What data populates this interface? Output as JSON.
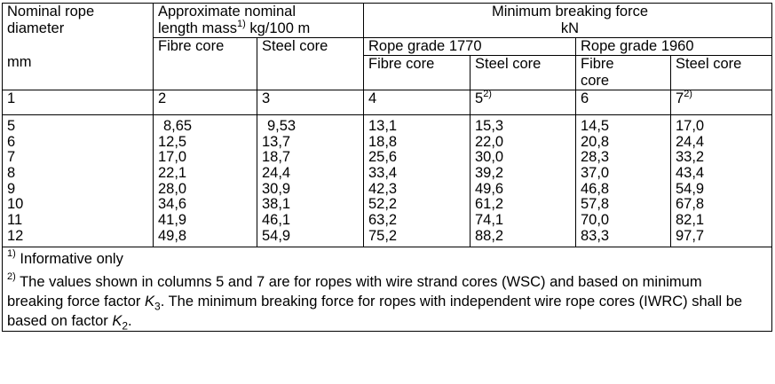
{
  "header": {
    "nominal_rope_1": "Nominal rope",
    "nominal_rope_2": "diameter",
    "unit_mm": "mm",
    "mass_1": "Approximate nominal",
    "mass_2a": "length mass",
    "mass_sup": "1)",
    "mass_2b": " kg/100 m",
    "force_1": "Minimum breaking force",
    "force_2": "kN",
    "fibre_core": "Fibre core",
    "steel_core": "Steel core",
    "grade_1770": "Rope grade 1770",
    "grade_1960": "Rope grade 1960",
    "fibre_core_a": "Fibre",
    "fibre_core_b": "core"
  },
  "column_numbers": {
    "c1": "1",
    "c2": "2",
    "c3": "3",
    "c4": "4",
    "c5": "5",
    "c5_sup": "2)",
    "c6": "6",
    "c7": "7",
    "c7_sup": "2)"
  },
  "rows": [
    [
      "5",
      "8,65",
      "9,53",
      "13,1",
      "15,3",
      "14,5",
      "17,0"
    ],
    [
      "6",
      "12,5",
      "13,7",
      "18,8",
      "22,0",
      "20,8",
      "24,4"
    ],
    [
      "7",
      "17,0",
      "18,7",
      "25,6",
      "30,0",
      "28,3",
      "33,2"
    ],
    [
      "8",
      "22,1",
      "24,4",
      "33,4",
      "39,2",
      "37,0",
      "43,4"
    ],
    [
      "9",
      "28,0",
      "30,9",
      "42,3",
      "49,6",
      "46,8",
      "54,9"
    ],
    [
      "10",
      "34,6",
      "38,1",
      "52,2",
      "61,2",
      "57,8",
      "67,8"
    ],
    [
      "11",
      "41,9",
      "46,1",
      "63,2",
      "74,1",
      "70,0",
      "82,1"
    ],
    [
      "12",
      "49,8",
      "54,9",
      "75,2",
      "88,2",
      "83,3",
      "97,7"
    ]
  ],
  "footnotes": {
    "fn1_sup": "1)",
    "fn1_text": " Informative only",
    "fn2_sup": "2)",
    "fn2_part1": " The values shown in columns 5 and 7 are for ropes with wire strand cores (WSC) and based on minimum breaking force factor ",
    "fn2_k3": "K",
    "fn2_k3_sub": "3",
    "fn2_part2": ". The minimum breaking force for ropes with independent wire rope cores (IWRC) shall be based on factor ",
    "fn2_k2": "K",
    "fn2_k2_sub": "2",
    "fn2_part3": "."
  }
}
